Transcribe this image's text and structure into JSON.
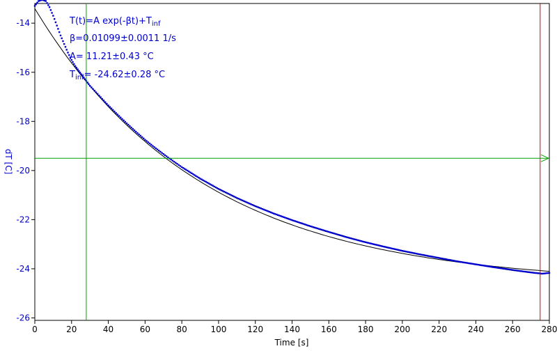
{
  "chart_data": {
    "type": "scatter",
    "xlabel": "Time [s]",
    "ylabel": "dT [C]",
    "xlim": [
      0,
      280
    ],
    "ylim": [
      -26.1,
      -13.2
    ],
    "x_ticks": [
      0,
      20,
      40,
      60,
      80,
      100,
      120,
      140,
      160,
      180,
      200,
      220,
      240,
      260,
      280
    ],
    "y_ticks": [
      -26,
      -24,
      -22,
      -20,
      -18,
      -16,
      -14
    ],
    "grid": false,
    "series": [
      {
        "kind": "points",
        "color": "#0000cc",
        "x": [
          0,
          2,
          4,
          6,
          8,
          10,
          12,
          14,
          16,
          18,
          20,
          22,
          24,
          26,
          28,
          30,
          35,
          40,
          45,
          50,
          55,
          60,
          65,
          70,
          75,
          80,
          90,
          100,
          110,
          120,
          130,
          140,
          150,
          160,
          170,
          180,
          190,
          200,
          210,
          220,
          230,
          240,
          250,
          260,
          270,
          276,
          280
        ],
        "y": [
          -13.3,
          -13.1,
          -13.05,
          -13.1,
          -13.35,
          -13.7,
          -14.1,
          -14.5,
          -14.85,
          -15.2,
          -15.5,
          -15.75,
          -15.95,
          -16.15,
          -16.35,
          -16.55,
          -16.95,
          -17.35,
          -17.72,
          -18.08,
          -18.42,
          -18.75,
          -19.05,
          -19.33,
          -19.6,
          -19.86,
          -20.33,
          -20.75,
          -21.12,
          -21.45,
          -21.75,
          -22.02,
          -22.27,
          -22.5,
          -22.72,
          -22.92,
          -23.1,
          -23.27,
          -23.42,
          -23.56,
          -23.7,
          -23.82,
          -23.94,
          -24.05,
          -24.15,
          -24.2,
          -24.17
        ]
      },
      {
        "kind": "fit",
        "color": "#000000",
        "function": "T(t)=A exp(-βt)+T_inf",
        "beta": 0.01099,
        "A": 11.21,
        "T_inf": -24.62
      }
    ],
    "annotations": {
      "formula_main": "T(t)=A exp(-βt)+T",
      "formula_sub": "inf",
      "beta_line": "β=0.01099±0.0011 1/s",
      "a_line": "A= 11.21±0.43 °C",
      "tinf_main": "T",
      "tinf_sub": "inf",
      "tinf_rest": "= -24.62±0.28 °C"
    },
    "cursors": {
      "vertical_green_x": 28,
      "vertical_red_x": 275,
      "horizontal_green_y": -19.5
    },
    "colors": {
      "axis_text": "#0000cc",
      "data": "#0000cc",
      "fit": "#000000",
      "cursor_green": "#00a000",
      "cursor_red": "#cc0000"
    }
  }
}
